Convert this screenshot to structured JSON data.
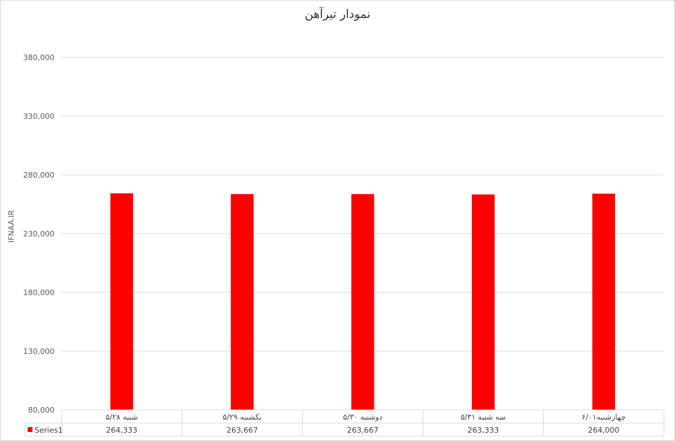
{
  "chart_data": {
    "type": "bar",
    "title": "نمودار تیرآهن",
    "ylabel": "IFNAA.IR",
    "xlabel": "",
    "categories": [
      "شنبه ۵/۲۸",
      "یکشنبه ۵/۲۹",
      "دوشنبه ۵/۳۰",
      "سه شنبه ۵/۳۱",
      "چهارشنبه۶/۰۱"
    ],
    "series": [
      {
        "name": "Series1",
        "values": [
          264333,
          263667,
          263667,
          263333,
          264000
        ],
        "labels": [
          "264,333",
          "263,667",
          "263,667",
          "263,333",
          "264,000"
        ],
        "color": "#ff0000"
      }
    ],
    "ylim": [
      80000,
      380000
    ],
    "yticks": [
      80000,
      130000,
      180000,
      230000,
      280000,
      330000,
      380000
    ],
    "ytick_labels": [
      "80,000",
      "130,000",
      "180,000",
      "230,000",
      "280,000",
      "330,000",
      "380,000"
    ],
    "grid": true,
    "legend": "data-table"
  }
}
